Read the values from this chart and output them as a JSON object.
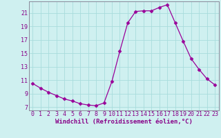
{
  "x": [
    0,
    1,
    2,
    3,
    4,
    5,
    6,
    7,
    8,
    9,
    10,
    11,
    12,
    13,
    14,
    15,
    16,
    17,
    18,
    19,
    20,
    21,
    22,
    23
  ],
  "y": [
    10.5,
    9.8,
    9.2,
    8.7,
    8.2,
    7.9,
    7.5,
    7.3,
    7.2,
    7.6,
    10.8,
    15.3,
    19.5,
    21.2,
    21.3,
    21.3,
    21.8,
    22.2,
    19.5,
    16.8,
    14.2,
    12.6,
    11.2,
    10.3
  ],
  "line_color": "#990099",
  "marker": "D",
  "marker_size": 2.5,
  "bg_color": "#cff0f0",
  "grid_color": "#a8dcdc",
  "axis_color": "#880088",
  "spine_color": "#888899",
  "xlabel": "Windchill (Refroidissement éolien,°C)",
  "xlabel_fontsize": 6.5,
  "tick_fontsize": 6.0,
  "ylim": [
    6.5,
    22.7
  ],
  "xlim": [
    -0.5,
    23.5
  ],
  "yticks": [
    7,
    9,
    11,
    13,
    15,
    17,
    19,
    21
  ],
  "xticks": [
    0,
    1,
    2,
    3,
    4,
    5,
    6,
    7,
    8,
    9,
    10,
    11,
    12,
    13,
    14,
    15,
    16,
    17,
    18,
    19,
    20,
    21,
    22,
    23
  ]
}
